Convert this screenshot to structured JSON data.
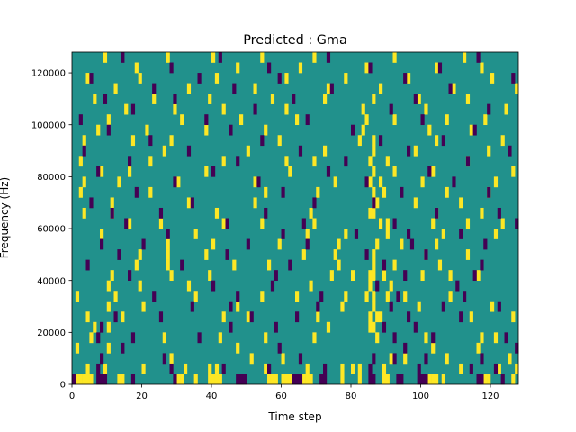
{
  "chart_data": {
    "type": "heatmap",
    "title": "Predicted : Gma",
    "xlabel": "Time step",
    "ylabel": "Frequency (Hz)",
    "xlim": [
      0,
      128
    ],
    "ylim": [
      0,
      128000
    ],
    "xticks": [
      0,
      20,
      40,
      60,
      80,
      100,
      120
    ],
    "xtick_labels": [
      "0",
      "20",
      "40",
      "60",
      "80",
      "100",
      "120"
    ],
    "yticks": [
      0,
      20000,
      40000,
      60000,
      80000,
      100000,
      120000
    ],
    "ytick_labels": [
      "0",
      "20000",
      "40000",
      "60000",
      "80000",
      "100000",
      "120000"
    ],
    "grid": false,
    "colormap": "viridis",
    "colors": {
      "background": "#21918c",
      "low": "#440154",
      "high": "#fde725"
    },
    "cell_width": 1,
    "cell_height": 4000,
    "high_cells": [
      [
        1,
        0
      ],
      [
        2,
        0
      ],
      [
        3,
        0
      ],
      [
        4,
        0
      ],
      [
        5,
        0
      ],
      [
        13,
        0
      ],
      [
        14,
        0
      ],
      [
        30,
        0
      ],
      [
        31,
        0
      ],
      [
        35,
        0
      ],
      [
        39,
        0
      ],
      [
        40,
        0
      ],
      [
        41,
        0
      ],
      [
        42,
        0
      ],
      [
        56,
        0
      ],
      [
        57,
        0
      ],
      [
        58,
        0
      ],
      [
        60,
        0
      ],
      [
        61,
        0
      ],
      [
        62,
        0
      ],
      [
        66,
        0
      ],
      [
        67,
        0
      ],
      [
        68,
        0
      ],
      [
        77,
        0
      ],
      [
        82,
        0
      ],
      [
        89,
        0
      ],
      [
        90,
        0
      ],
      [
        102,
        0
      ],
      [
        103,
        0
      ],
      [
        104,
        0
      ],
      [
        106,
        0
      ],
      [
        118,
        0
      ],
      [
        119,
        0
      ],
      [
        126,
        0
      ],
      [
        4,
        1
      ],
      [
        9,
        1
      ],
      [
        20,
        1
      ],
      [
        32,
        1
      ],
      [
        39,
        1
      ],
      [
        41,
        1
      ],
      [
        55,
        1
      ],
      [
        67,
        1
      ],
      [
        77,
        1
      ],
      [
        80,
        1
      ],
      [
        82,
        1
      ],
      [
        89,
        1
      ],
      [
        111,
        1
      ],
      [
        122,
        1
      ],
      [
        127,
        1
      ],
      [
        28,
        2
      ],
      [
        51,
        2
      ],
      [
        60,
        2
      ],
      [
        91,
        2
      ],
      [
        95,
        2
      ],
      [
        107,
        2
      ],
      [
        125,
        2
      ],
      [
        1,
        3
      ],
      [
        10,
        3
      ],
      [
        47,
        3
      ],
      [
        103,
        3
      ],
      [
        116,
        3
      ],
      [
        5,
        4
      ],
      [
        26,
        4
      ],
      [
        42,
        4
      ],
      [
        55,
        4
      ],
      [
        69,
        4
      ],
      [
        87,
        4
      ],
      [
        101,
        4
      ],
      [
        117,
        4
      ],
      [
        121,
        4
      ],
      [
        6,
        5
      ],
      [
        10,
        5
      ],
      [
        73,
        5
      ],
      [
        85,
        5
      ],
      [
        86,
        5
      ],
      [
        4,
        6
      ],
      [
        14,
        6
      ],
      [
        43,
        6
      ],
      [
        50,
        6
      ],
      [
        70,
        6
      ],
      [
        85,
        6
      ],
      [
        87,
        6
      ],
      [
        88,
        6
      ],
      [
        114,
        6
      ],
      [
        126,
        6
      ],
      [
        10,
        7
      ],
      [
        20,
        7
      ],
      [
        47,
        7
      ],
      [
        77,
        7
      ],
      [
        86,
        7
      ],
      [
        99,
        7
      ],
      [
        120,
        7
      ],
      [
        1,
        8
      ],
      [
        12,
        8
      ],
      [
        35,
        8
      ],
      [
        54,
        8
      ],
      [
        64,
        8
      ],
      [
        78,
        8
      ],
      [
        84,
        8
      ],
      [
        86,
        8
      ],
      [
        90,
        8
      ],
      [
        95,
        8
      ],
      [
        108,
        8
      ],
      [
        10,
        9
      ],
      [
        19,
        9
      ],
      [
        33,
        9
      ],
      [
        68,
        9
      ],
      [
        85,
        9
      ],
      [
        91,
        9
      ],
      [
        11,
        10
      ],
      [
        28,
        10
      ],
      [
        39,
        10
      ],
      [
        74,
        10
      ],
      [
        80,
        10
      ],
      [
        85,
        10
      ],
      [
        86,
        10
      ],
      [
        89,
        10
      ],
      [
        100,
        10
      ],
      [
        108,
        10
      ],
      [
        116,
        10
      ],
      [
        18,
        11
      ],
      [
        27,
        11
      ],
      [
        46,
        11
      ],
      [
        56,
        11
      ],
      [
        76,
        11
      ],
      [
        86,
        11
      ],
      [
        92,
        11
      ],
      [
        105,
        11
      ],
      [
        19,
        12
      ],
      [
        27,
        12
      ],
      [
        38,
        12
      ],
      [
        66,
        12
      ],
      [
        75,
        12
      ],
      [
        86,
        12
      ],
      [
        101,
        12
      ],
      [
        113,
        12
      ],
      [
        27,
        13
      ],
      [
        40,
        13
      ],
      [
        59,
        13
      ],
      [
        76,
        13
      ],
      [
        87,
        13
      ],
      [
        94,
        13
      ],
      [
        104,
        13
      ],
      [
        8,
        14
      ],
      [
        35,
        14
      ],
      [
        67,
        14
      ],
      [
        78,
        14
      ],
      [
        90,
        14
      ],
      [
        106,
        14
      ],
      [
        121,
        14
      ],
      [
        16,
        15
      ],
      [
        25,
        15
      ],
      [
        43,
        15
      ],
      [
        54,
        15
      ],
      [
        69,
        15
      ],
      [
        88,
        15
      ],
      [
        90,
        15
      ],
      [
        103,
        15
      ],
      [
        113,
        15
      ],
      [
        123,
        15
      ],
      [
        3,
        16
      ],
      [
        11,
        16
      ],
      [
        41,
        16
      ],
      [
        68,
        16
      ],
      [
        85,
        16
      ],
      [
        86,
        16
      ],
      [
        104,
        16
      ],
      [
        117,
        16
      ],
      [
        11,
        17
      ],
      [
        33,
        17
      ],
      [
        52,
        17
      ],
      [
        86,
        17
      ],
      [
        87,
        17
      ],
      [
        98,
        17
      ],
      [
        111,
        17
      ],
      [
        2,
        18
      ],
      [
        22,
        18
      ],
      [
        55,
        18
      ],
      [
        70,
        18
      ],
      [
        86,
        18
      ],
      [
        89,
        18
      ],
      [
        107,
        18
      ],
      [
        119,
        18
      ],
      [
        3,
        19
      ],
      [
        13,
        19
      ],
      [
        30,
        19
      ],
      [
        52,
        19
      ],
      [
        75,
        19
      ],
      [
        85,
        19
      ],
      [
        88,
        19
      ],
      [
        100,
        19
      ],
      [
        121,
        19
      ],
      [
        8,
        20
      ],
      [
        16,
        20
      ],
      [
        38,
        20
      ],
      [
        62,
        20
      ],
      [
        86,
        20
      ],
      [
        92,
        20
      ],
      [
        103,
        20
      ],
      [
        126,
        20
      ],
      [
        2,
        21
      ],
      [
        22,
        21
      ],
      [
        43,
        21
      ],
      [
        61,
        21
      ],
      [
        69,
        21
      ],
      [
        85,
        21
      ],
      [
        90,
        21
      ],
      [
        113,
        21
      ],
      [
        26,
        22
      ],
      [
        50,
        22
      ],
      [
        72,
        22
      ],
      [
        86,
        22
      ],
      [
        98,
        22
      ],
      [
        119,
        22
      ],
      [
        3,
        23
      ],
      [
        17,
        23
      ],
      [
        28,
        23
      ],
      [
        59,
        23
      ],
      [
        82,
        23
      ],
      [
        86,
        23
      ],
      [
        104,
        23
      ],
      [
        123,
        23
      ],
      [
        7,
        24
      ],
      [
        21,
        24
      ],
      [
        38,
        24
      ],
      [
        55,
        24
      ],
      [
        83,
        24
      ],
      [
        102,
        24
      ],
      [
        114,
        24
      ],
      [
        10,
        25
      ],
      [
        31,
        25
      ],
      [
        48,
        25
      ],
      [
        64,
        25
      ],
      [
        84,
        25
      ],
      [
        92,
        25
      ],
      [
        107,
        25
      ],
      [
        118,
        25
      ],
      [
        15,
        26
      ],
      [
        29,
        26
      ],
      [
        43,
        26
      ],
      [
        61,
        26
      ],
      [
        83,
        26
      ],
      [
        101,
        26
      ],
      [
        124,
        26
      ],
      [
        6,
        27
      ],
      [
        23,
        27
      ],
      [
        39,
        27
      ],
      [
        57,
        27
      ],
      [
        72,
        27
      ],
      [
        86,
        27
      ],
      [
        99,
        27
      ],
      [
        113,
        27
      ],
      [
        12,
        28
      ],
      [
        33,
        28
      ],
      [
        52,
        28
      ],
      [
        73,
        28
      ],
      [
        88,
        28
      ],
      [
        109,
        28
      ],
      [
        127,
        28
      ],
      [
        4,
        29
      ],
      [
        19,
        29
      ],
      [
        41,
        29
      ],
      [
        61,
        29
      ],
      [
        78,
        29
      ],
      [
        96,
        29
      ],
      [
        120,
        29
      ],
      [
        18,
        30
      ],
      [
        47,
        30
      ],
      [
        65,
        30
      ],
      [
        84,
        30
      ],
      [
        104,
        30
      ],
      [
        117,
        30
      ],
      [
        9,
        31
      ],
      [
        27,
        31
      ],
      [
        40,
        31
      ],
      [
        54,
        31
      ],
      [
        69,
        31
      ],
      [
        92,
        31
      ],
      [
        112,
        31
      ]
    ],
    "low_cells": [
      [
        0,
        0
      ],
      [
        7,
        0
      ],
      [
        8,
        0
      ],
      [
        9,
        0
      ],
      [
        17,
        0
      ],
      [
        29,
        0
      ],
      [
        47,
        0
      ],
      [
        48,
        0
      ],
      [
        49,
        0
      ],
      [
        63,
        0
      ],
      [
        64,
        0
      ],
      [
        65,
        0
      ],
      [
        71,
        0
      ],
      [
        72,
        0
      ],
      [
        85,
        0
      ],
      [
        86,
        0
      ],
      [
        93,
        0
      ],
      [
        94,
        0
      ],
      [
        99,
        0
      ],
      [
        100,
        0
      ],
      [
        101,
        0
      ],
      [
        116,
        0
      ],
      [
        117,
        0
      ],
      [
        123,
        0
      ],
      [
        7,
        1
      ],
      [
        28,
        1
      ],
      [
        43,
        1
      ],
      [
        56,
        1
      ],
      [
        72,
        1
      ],
      [
        85,
        1
      ],
      [
        99,
        1
      ],
      [
        114,
        1
      ],
      [
        121,
        1
      ],
      [
        8,
        2
      ],
      [
        26,
        2
      ],
      [
        65,
        2
      ],
      [
        86,
        2
      ],
      [
        92,
        2
      ],
      [
        101,
        2
      ],
      [
        117,
        2
      ],
      [
        14,
        3
      ],
      [
        59,
        3
      ],
      [
        95,
        3
      ],
      [
        127,
        3
      ],
      [
        7,
        4
      ],
      [
        17,
        4
      ],
      [
        36,
        4
      ],
      [
        92,
        4
      ],
      [
        103,
        4
      ],
      [
        124,
        4
      ],
      [
        8,
        5
      ],
      [
        45,
        5
      ],
      [
        58,
        5
      ],
      [
        89,
        5
      ],
      [
        98,
        5
      ],
      [
        12,
        6
      ],
      [
        25,
        6
      ],
      [
        51,
        6
      ],
      [
        64,
        6
      ],
      [
        96,
        6
      ],
      [
        111,
        6
      ],
      [
        34,
        7
      ],
      [
        45,
        7
      ],
      [
        70,
        7
      ],
      [
        91,
        7
      ],
      [
        106,
        7
      ],
      [
        122,
        7
      ],
      [
        23,
        8
      ],
      [
        47,
        8
      ],
      [
        71,
        8
      ],
      [
        93,
        8
      ],
      [
        112,
        8
      ],
      [
        40,
        9
      ],
      [
        57,
        9
      ],
      [
        87,
        9
      ],
      [
        110,
        9
      ],
      [
        16,
        10
      ],
      [
        58,
        10
      ],
      [
        95,
        10
      ],
      [
        115,
        10
      ],
      [
        4,
        11
      ],
      [
        31,
        11
      ],
      [
        62,
        11
      ],
      [
        89,
        11
      ],
      [
        117,
        11
      ],
      [
        13,
        12
      ],
      [
        44,
        12
      ],
      [
        84,
        12
      ],
      [
        101,
        12
      ],
      [
        8,
        13
      ],
      [
        20,
        13
      ],
      [
        50,
        13
      ],
      [
        67,
        13
      ],
      [
        97,
        13
      ],
      [
        118,
        13
      ],
      [
        27,
        14
      ],
      [
        60,
        14
      ],
      [
        81,
        14
      ],
      [
        96,
        14
      ],
      [
        111,
        14
      ],
      [
        15,
        15
      ],
      [
        44,
        15
      ],
      [
        66,
        15
      ],
      [
        92,
        15
      ],
      [
        127,
        15
      ],
      [
        11,
        16
      ],
      [
        25,
        16
      ],
      [
        55,
        16
      ],
      [
        104,
        16
      ],
      [
        122,
        16
      ],
      [
        5,
        17
      ],
      [
        34,
        17
      ],
      [
        69,
        17
      ],
      [
        86,
        17
      ],
      [
        18,
        18
      ],
      [
        60,
        18
      ],
      [
        94,
        18
      ],
      [
        119,
        18
      ],
      [
        29,
        19
      ],
      [
        53,
        19
      ],
      [
        84,
        19
      ],
      [
        109,
        19
      ],
      [
        7,
        20
      ],
      [
        40,
        20
      ],
      [
        73,
        20
      ],
      [
        102,
        20
      ],
      [
        16,
        21
      ],
      [
        47,
        21
      ],
      [
        78,
        21
      ],
      [
        113,
        21
      ],
      [
        3,
        22
      ],
      [
        33,
        22
      ],
      [
        65,
        22
      ],
      [
        96,
        22
      ],
      [
        125,
        22
      ],
      [
        22,
        23
      ],
      [
        54,
        23
      ],
      [
        88,
        23
      ],
      [
        106,
        23
      ],
      [
        10,
        24
      ],
      [
        45,
        24
      ],
      [
        80,
        24
      ],
      [
        115,
        24
      ],
      [
        2,
        25
      ],
      [
        38,
        25
      ],
      [
        67,
        25
      ],
      [
        100,
        25
      ],
      [
        17,
        26
      ],
      [
        52,
        26
      ],
      [
        91,
        26
      ],
      [
        119,
        26
      ],
      [
        9,
        27
      ],
      [
        29,
        27
      ],
      [
        63,
        27
      ],
      [
        98,
        27
      ],
      [
        23,
        28
      ],
      [
        46,
        28
      ],
      [
        74,
        28
      ],
      [
        108,
        28
      ],
      [
        5,
        29
      ],
      [
        36,
        29
      ],
      [
        59,
        29
      ],
      [
        95,
        29
      ],
      [
        126,
        29
      ],
      [
        28,
        30
      ],
      [
        56,
        30
      ],
      [
        85,
        30
      ],
      [
        105,
        30
      ],
      [
        14,
        31
      ],
      [
        42,
        31
      ],
      [
        73,
        31
      ],
      [
        116,
        31
      ]
    ]
  }
}
